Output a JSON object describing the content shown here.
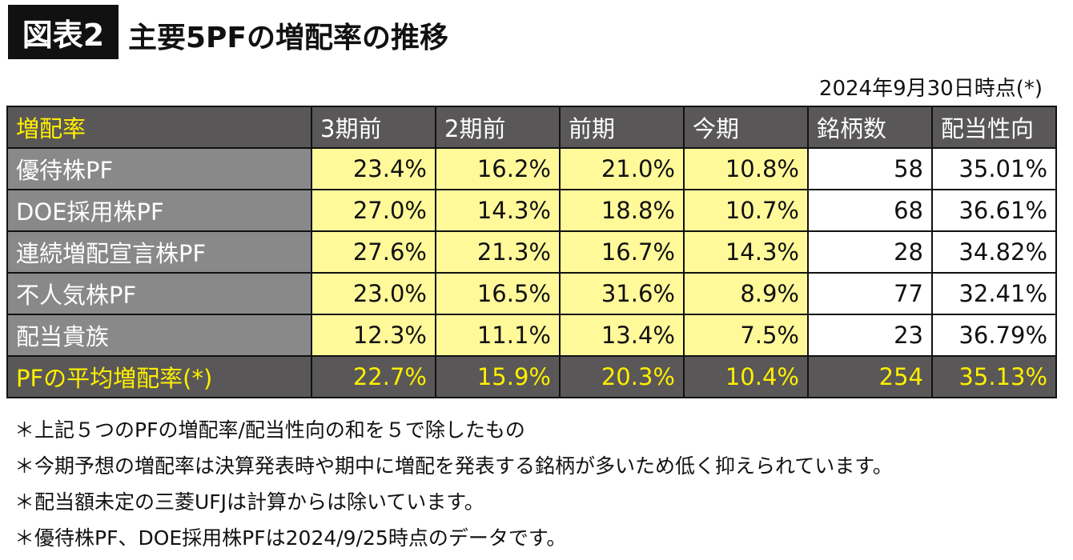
{
  "header": {
    "badge": "図表2",
    "title": "主要5PFの増配率の推移",
    "as_of": "2024年9月30日時点(*)"
  },
  "chart_data": {
    "type": "table",
    "columns": [
      "増配率",
      "3期前",
      "2期前",
      "前期",
      "今期",
      "銘柄数",
      "配当性向"
    ],
    "rows": [
      [
        "優待株PF",
        "23.4%",
        "16.2%",
        "21.0%",
        "10.8%",
        "58",
        "35.01%"
      ],
      [
        "DOE採用株PF",
        "27.0%",
        "14.3%",
        "18.8%",
        "10.7%",
        "68",
        "36.61%"
      ],
      [
        "連続増配宣言株PF",
        "27.6%",
        "21.3%",
        "16.7%",
        "14.3%",
        "28",
        "34.82%"
      ],
      [
        "不人気株PF",
        "23.0%",
        "16.5%",
        "31.6%",
        "8.9%",
        "77",
        "32.41%"
      ],
      [
        "配当貴族",
        "12.3%",
        "11.1%",
        "13.4%",
        "7.5%",
        "23",
        "36.79%"
      ]
    ],
    "average_row": [
      "PFの平均増配率(*)",
      "22.7%",
      "15.9%",
      "20.3%",
      "10.4%",
      "254",
      "35.13%"
    ]
  },
  "notes": [
    "＊上記５つのPFの増配率/配当性向の和を５で除したもの",
    "＊今期予想の増配率は決算発表時や期中に増配を発表する銘柄が多いため低く抑えられています。",
    "＊配当額未定の三菱UFJは計算からは除いています。",
    "＊優待株PF、DOE採用株PFは2024/9/25時点のデータです。"
  ],
  "colors": {
    "header_bg": "#595757",
    "label_bg": "#898989",
    "highlight": "#fff99a",
    "accent_text": "#ffef00"
  }
}
